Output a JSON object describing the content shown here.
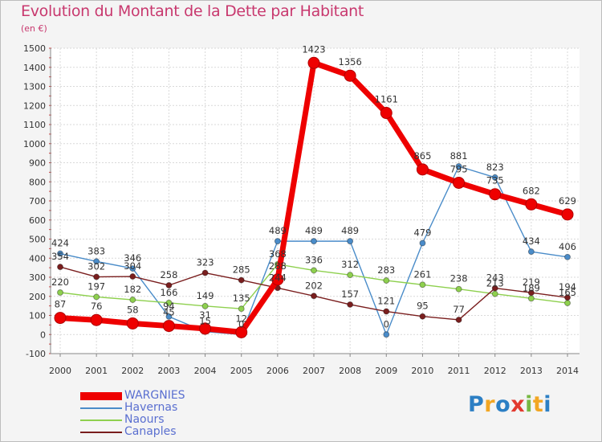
{
  "chart_data": {
    "type": "line",
    "title": "Evolution du Montant de la Dette par Habitant",
    "subtitle": "(en €)",
    "x": [
      "2000",
      "2001",
      "2002",
      "2003",
      "2004",
      "2005",
      "2006",
      "2007",
      "2008",
      "2009",
      "2010",
      "2011",
      "2012",
      "2013",
      "2014"
    ],
    "ylim": [
      -100,
      1500
    ],
    "yticks": [
      -100,
      0,
      100,
      200,
      300,
      400,
      500,
      600,
      700,
      800,
      900,
      1000,
      1100,
      1200,
      1300,
      1400,
      1500
    ],
    "grid": true,
    "legend_position": "bottom-left",
    "series": [
      {
        "name": "WARGNIES",
        "color": "#ee0000",
        "emphasis": true,
        "values": [
          87,
          76,
          58,
          45,
          31,
          12,
          288,
          1423,
          1356,
          1161,
          865,
          795,
          735,
          682,
          629
        ]
      },
      {
        "name": "Havernas",
        "color": "#4a8cc9",
        "emphasis": false,
        "values": [
          424,
          383,
          346,
          94,
          15,
          0,
          489,
          489,
          489,
          0,
          479,
          881,
          823,
          434,
          406
        ]
      },
      {
        "name": "Naours",
        "color": "#8ed04e",
        "emphasis": false,
        "values": [
          220,
          197,
          182,
          166,
          149,
          135,
          368,
          336,
          312,
          283,
          261,
          238,
          213,
          189,
          165
        ]
      },
      {
        "name": "Canaples",
        "color": "#7a1e1e",
        "emphasis": false,
        "values": [
          354,
          302,
          304,
          258,
          323,
          285,
          244,
          202,
          157,
          121,
          95,
          77,
          243,
          219,
          194
        ]
      }
    ]
  },
  "logo_text": "Proxiti"
}
